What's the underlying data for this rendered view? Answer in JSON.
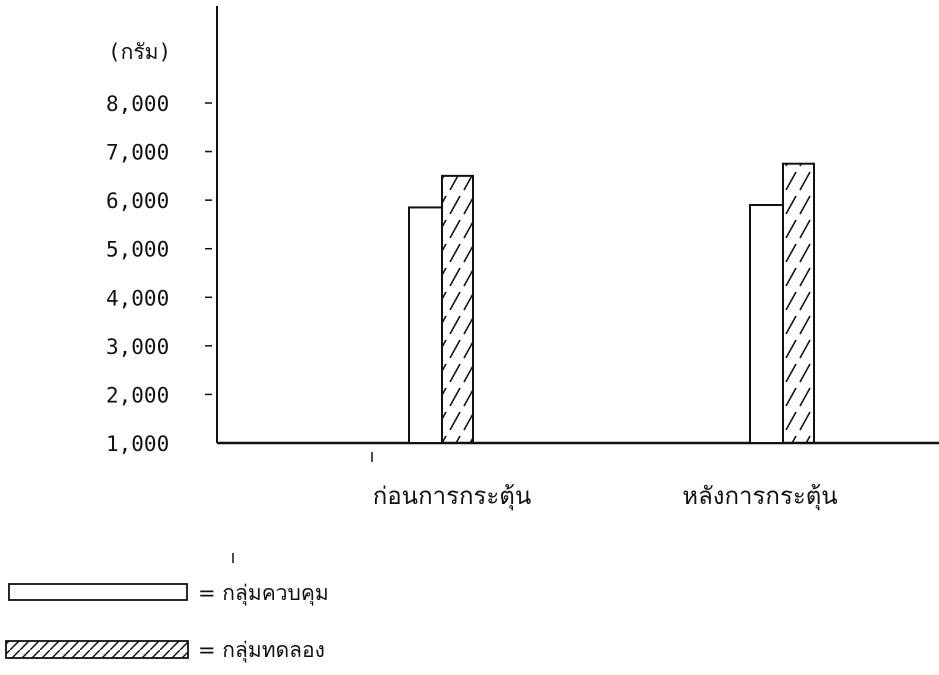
{
  "chart_data": {
    "type": "bar",
    "unit_label": "(กรัม)",
    "categories": [
      "ก่อนการกระตุ้น",
      "หลังการกระตุ้น"
    ],
    "yticks": [
      "1,000",
      "2,000",
      "3,000",
      "4,000",
      "5,000",
      "6,000",
      "7,000",
      "8,000"
    ],
    "ylim": [
      1000,
      8000
    ],
    "grid": false,
    "legend_position": "bottom-left",
    "series": [
      {
        "name": "กลุ่มควบคุม",
        "values": [
          5850,
          5900
        ],
        "pattern": "plain"
      },
      {
        "name": "กลุ่มทดลอง",
        "values": [
          6500,
          6750
        ],
        "pattern": "hatched"
      }
    ]
  },
  "legend": [
    {
      "text": "= กลุ่มควบคุม"
    },
    {
      "text": "= กลุ่มทดลอง"
    }
  ],
  "colors": {
    "ink": "#111111",
    "background": "#ffffff"
  }
}
